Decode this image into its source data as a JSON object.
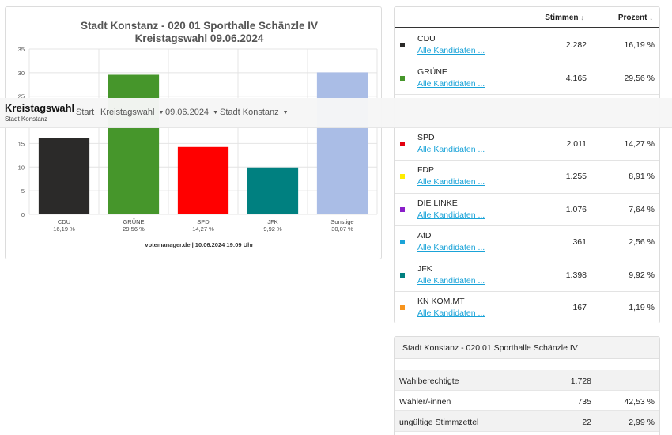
{
  "header": {
    "title": "Kreistagswahl",
    "subtitle": "Stadt Konstanz",
    "nav": [
      {
        "label": "Start",
        "dropdown": false
      },
      {
        "label": "Kreistagswahl",
        "dropdown": true
      },
      {
        "label": "09.06.2024",
        "dropdown": true
      },
      {
        "label": "Stadt Konstanz",
        "dropdown": true
      }
    ]
  },
  "chart_data": {
    "type": "bar",
    "title": "Stadt Konstanz - 020 01 Sporthalle Schänzle IV",
    "subtitle": "Kreistagswahl 09.06.2024",
    "categories": [
      "CDU",
      "GRÜNE",
      "SPD",
      "JFK",
      "Sonstige"
    ],
    "category_labels": [
      "16,19 %",
      "29,56 %",
      "14,27 %",
      "9,92 %",
      "30,07 %"
    ],
    "values": [
      16.19,
      29.56,
      14.27,
      9.92,
      30.07
    ],
    "colors": [
      "#2b2a29",
      "#46962b",
      "#ff0000",
      "#008080",
      "#aabde6"
    ],
    "ylim": [
      0,
      35
    ],
    "yticks": [
      "0",
      "5",
      "10",
      "15",
      "20",
      "25",
      "30",
      "35"
    ],
    "grid": true,
    "footer": "votemanager.de | 10.06.2024 19:09 Uhr"
  },
  "results": {
    "col_votes": "Stimmen",
    "col_percent": "Prozent",
    "sort_icon": "↓",
    "link_label": "Alle Kandidaten ...",
    "rows": [
      {
        "party": "CDU",
        "votes": "2.282",
        "percent": "16,19 %",
        "color": "#2b2a29"
      },
      {
        "party": "GRÜNE",
        "votes": "4.165",
        "percent": "29,56 %",
        "color": "#46962b"
      },
      {
        "party": "",
        "votes": "",
        "percent": "",
        "color": ""
      },
      {
        "party": "SPD",
        "votes": "2.011",
        "percent": "14,27 %",
        "color": "#e3000f"
      },
      {
        "party": "FDP",
        "votes": "1.255",
        "percent": "8,91 %",
        "color": "#ffed00"
      },
      {
        "party": "DIE LINKE",
        "votes": "1.076",
        "percent": "7,64 %",
        "color": "#8a1ec9"
      },
      {
        "party": "AfD",
        "votes": "361",
        "percent": "2,56 %",
        "color": "#1aa3d8"
      },
      {
        "party": "JFK",
        "votes": "1.398",
        "percent": "9,92 %",
        "color": "#008080"
      },
      {
        "party": "KN KOM.MT",
        "votes": "167",
        "percent": "1,19 %",
        "color": "#f7941d"
      }
    ]
  },
  "summary": {
    "title": "Stadt Konstanz - 020 01 Sporthalle Schänzle IV",
    "rows": [
      {
        "label": "Wahlberechtigte",
        "value": "1.728",
        "percent": ""
      },
      {
        "label": "Wähler/-innen",
        "value": "735",
        "percent": "42,53 %"
      },
      {
        "label": "ungültige Stimmzettel",
        "value": "22",
        "percent": "2,99 %"
      }
    ]
  }
}
